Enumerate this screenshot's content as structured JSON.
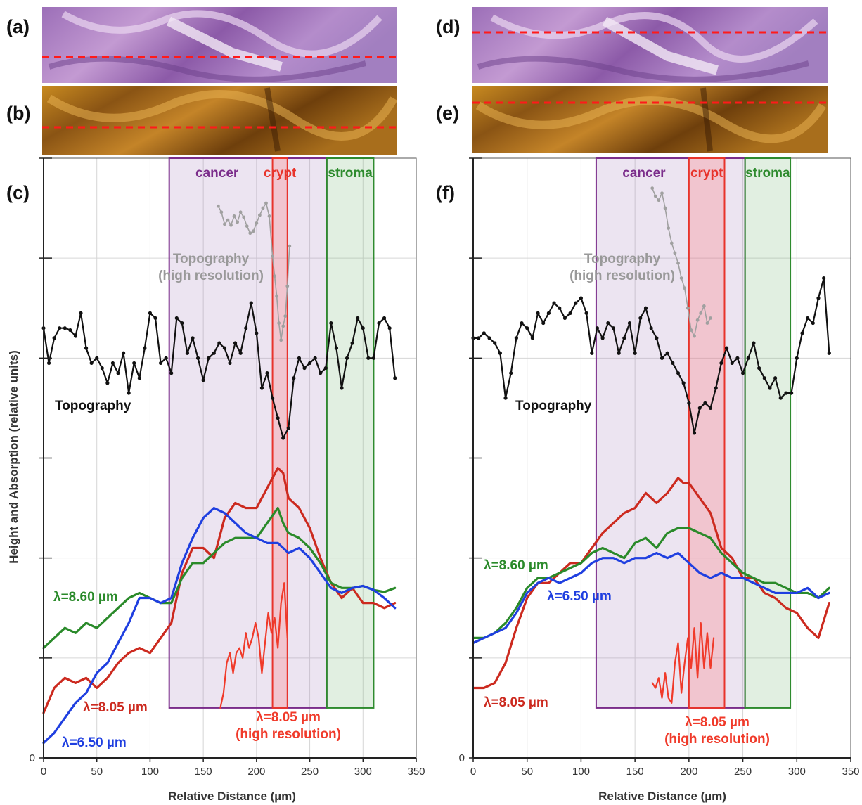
{
  "panel_labels": {
    "a": "(a)",
    "b": "(b)",
    "c": "(c)",
    "d": "(d)",
    "e": "(e)",
    "f": "(f)"
  },
  "colors": {
    "cancer": "#7b2d8b",
    "crypt": "#e8332b",
    "stroma": "#2e8b2e",
    "topography": "#111111",
    "topography_hr": "#a0a0a0",
    "lambda_805": "#cc2a1f",
    "lambda_860": "#2a8a2a",
    "lambda_650": "#1f3fe0",
    "lambda_805_hr": "#f03a2a"
  },
  "chart_data": [
    {
      "type": "line",
      "panel": "(c)",
      "xlabel": "Relative Distance (µm)",
      "ylabel": "Height and Absorption (relative units)",
      "xlim": [
        0,
        350
      ],
      "xticks": [
        0,
        50,
        100,
        150,
        200,
        250,
        300,
        350
      ],
      "ylim": [
        0,
        6
      ],
      "yticks": [
        "0",
        "",
        "",
        "",
        "",
        "",
        ""
      ],
      "grid": true,
      "regions": [
        {
          "label": "cancer",
          "x0": 118,
          "x1": 266,
          "y0": 0.5,
          "y1": 6.0
        },
        {
          "label": "crypt",
          "x0": 215,
          "x1": 229,
          "y0": 0.5,
          "y1": 6.0
        },
        {
          "label": "stroma",
          "x0": 266,
          "x1": 310,
          "y0": 0.5,
          "y1": 6.0
        }
      ],
      "annotations": {
        "topography": "Topography",
        "topography_hr": "Topography\n(high resolution)",
        "l860": "λ=8.60 µm",
        "l805": "λ=8.05 µm",
        "l650": "λ=6.50 µm",
        "l805_hr": "λ=8.05 µm\n(high resolution)"
      },
      "series": [
        {
          "key": "topography",
          "x": [
            0,
            5,
            10,
            15,
            20,
            25,
            30,
            35,
            40,
            45,
            50,
            55,
            60,
            65,
            70,
            75,
            80,
            85,
            90,
            95,
            100,
            105,
            110,
            115,
            120,
            125,
            130,
            135,
            140,
            145,
            150,
            155,
            160,
            165,
            170,
            175,
            180,
            185,
            190,
            195,
            200,
            205,
            210,
            215,
            220,
            225,
            230,
            235,
            240,
            245,
            250,
            255,
            260,
            265,
            270,
            275,
            280,
            285,
            290,
            295,
            300,
            305,
            310,
            315,
            320,
            325,
            330
          ],
          "y": [
            4.3,
            3.95,
            4.2,
            4.3,
            4.3,
            4.28,
            4.22,
            4.45,
            4.1,
            3.95,
            4.0,
            3.9,
            3.75,
            3.95,
            3.85,
            4.05,
            3.65,
            3.95,
            3.8,
            4.1,
            4.45,
            4.4,
            3.95,
            4.0,
            3.85,
            4.4,
            4.35,
            4.05,
            4.2,
            4.0,
            3.78,
            4.0,
            4.05,
            4.15,
            4.1,
            3.95,
            4.15,
            4.05,
            4.3,
            4.55,
            4.25,
            3.7,
            3.85,
            3.6,
            3.4,
            3.2,
            3.3,
            3.8,
            4.0,
            3.9,
            3.95,
            4.0,
            3.85,
            3.9,
            4.35,
            4.1,
            3.7,
            4.0,
            4.15,
            4.4,
            4.3,
            4.0,
            4.0,
            4.35,
            4.4,
            4.3,
            3.8
          ]
        },
        {
          "key": "topography_hr",
          "x": [
            164,
            167,
            170,
            173,
            176,
            179,
            182,
            185,
            188,
            191,
            194,
            197,
            200,
            203,
            206,
            209,
            212,
            215,
            217,
            219,
            221,
            223,
            225,
            227,
            229,
            231
          ],
          "y": [
            5.52,
            5.46,
            5.34,
            5.38,
            5.33,
            5.42,
            5.36,
            5.46,
            5.41,
            5.32,
            5.25,
            5.27,
            5.35,
            5.43,
            5.5,
            5.55,
            5.42,
            5.02,
            4.82,
            4.62,
            4.35,
            4.18,
            4.32,
            4.42,
            4.72,
            5.12
          ]
        },
        {
          "key": "lambda_805",
          "x": [
            0,
            10,
            20,
            30,
            40,
            50,
            60,
            70,
            80,
            90,
            100,
            110,
            120,
            130,
            140,
            150,
            160,
            170,
            180,
            190,
            200,
            210,
            220,
            225,
            230,
            240,
            250,
            260,
            270,
            280,
            290,
            300,
            310,
            320,
            330
          ],
          "y": [
            0.45,
            0.7,
            0.8,
            0.75,
            0.8,
            0.7,
            0.8,
            0.95,
            1.05,
            1.1,
            1.05,
            1.2,
            1.35,
            1.85,
            2.1,
            2.1,
            2.0,
            2.4,
            2.55,
            2.5,
            2.5,
            2.7,
            2.9,
            2.85,
            2.6,
            2.5,
            2.3,
            2.0,
            1.75,
            1.6,
            1.7,
            1.55,
            1.55,
            1.5,
            1.55
          ]
        },
        {
          "key": "lambda_860",
          "x": [
            0,
            10,
            20,
            30,
            40,
            50,
            60,
            70,
            80,
            90,
            100,
            110,
            120,
            130,
            140,
            150,
            160,
            170,
            180,
            190,
            200,
            210,
            220,
            225,
            230,
            240,
            250,
            260,
            270,
            280,
            290,
            300,
            310,
            320,
            330
          ],
          "y": [
            1.1,
            1.2,
            1.3,
            1.25,
            1.35,
            1.3,
            1.4,
            1.5,
            1.6,
            1.65,
            1.6,
            1.55,
            1.55,
            1.8,
            1.95,
            1.95,
            2.05,
            2.15,
            2.2,
            2.2,
            2.2,
            2.35,
            2.5,
            2.35,
            2.25,
            2.2,
            2.1,
            1.95,
            1.75,
            1.7,
            1.7,
            1.72,
            1.68,
            1.66,
            1.7
          ]
        },
        {
          "key": "lambda_650",
          "x": [
            0,
            10,
            20,
            30,
            40,
            50,
            60,
            70,
            80,
            90,
            100,
            110,
            120,
            130,
            140,
            150,
            160,
            170,
            180,
            190,
            200,
            210,
            220,
            230,
            240,
            250,
            260,
            270,
            280,
            290,
            300,
            310,
            320,
            330
          ],
          "y": [
            0.15,
            0.25,
            0.4,
            0.55,
            0.65,
            0.85,
            0.95,
            1.15,
            1.35,
            1.6,
            1.6,
            1.55,
            1.6,
            1.95,
            2.2,
            2.4,
            2.5,
            2.45,
            2.35,
            2.25,
            2.2,
            2.15,
            2.15,
            2.05,
            2.1,
            2.0,
            1.85,
            1.7,
            1.65,
            1.7,
            1.72,
            1.68,
            1.6,
            1.5
          ]
        },
        {
          "key": "lambda_805_hr",
          "x": [
            166,
            169,
            172,
            175,
            178,
            181,
            184,
            187,
            190,
            193,
            196,
            199,
            202,
            205,
            208,
            211,
            214,
            217,
            220,
            223,
            226,
            229
          ],
          "y": [
            0.5,
            0.65,
            0.95,
            1.05,
            0.85,
            1.05,
            1.1,
            1.0,
            1.25,
            1.1,
            1.2,
            1.35,
            1.2,
            0.85,
            1.15,
            1.45,
            1.25,
            1.4,
            1.1,
            1.55,
            1.75,
            1.2
          ]
        }
      ]
    },
    {
      "type": "line",
      "panel": "(f)",
      "xlabel": "Relative Distance (µm)",
      "ylabel": "",
      "xlim": [
        0,
        350
      ],
      "xticks": [
        0,
        50,
        100,
        150,
        200,
        250,
        300,
        350
      ],
      "ylim": [
        0,
        6
      ],
      "yticks": [
        "0",
        "",
        "",
        "",
        "",
        "",
        ""
      ],
      "grid": true,
      "regions": [
        {
          "label": "cancer",
          "x0": 114,
          "x1": 252,
          "y0": 0.5,
          "y1": 6.0
        },
        {
          "label": "crypt",
          "x0": 200,
          "x1": 233,
          "y0": 0.5,
          "y1": 6.0
        },
        {
          "label": "stroma",
          "x0": 252,
          "x1": 294,
          "y0": 0.5,
          "y1": 6.0
        }
      ],
      "annotations": {
        "topography": "Topography",
        "topography_hr": "Topography\n(high resolution)",
        "l860": "λ=8.60 µm",
        "l805": "λ=8.05 µm",
        "l650": "λ=6.50 µm",
        "l805_hr": "λ=8.05 µm\n(high resolution)"
      },
      "series": [
        {
          "key": "topography",
          "x": [
            0,
            5,
            10,
            15,
            20,
            25,
            30,
            35,
            40,
            45,
            50,
            55,
            60,
            65,
            70,
            75,
            80,
            85,
            90,
            95,
            100,
            105,
            110,
            115,
            120,
            125,
            130,
            135,
            140,
            145,
            150,
            155,
            160,
            165,
            170,
            175,
            180,
            185,
            190,
            195,
            200,
            205,
            210,
            215,
            220,
            225,
            230,
            235,
            240,
            245,
            250,
            255,
            260,
            265,
            270,
            275,
            280,
            285,
            290,
            295,
            300,
            305,
            310,
            315,
            320,
            325,
            330
          ],
          "y": [
            4.2,
            4.2,
            4.25,
            4.2,
            4.15,
            4.05,
            3.6,
            3.85,
            4.2,
            4.35,
            4.3,
            4.2,
            4.45,
            4.35,
            4.45,
            4.55,
            4.5,
            4.4,
            4.45,
            4.55,
            4.6,
            4.45,
            4.05,
            4.3,
            4.2,
            4.35,
            4.3,
            4.05,
            4.2,
            4.35,
            4.05,
            4.4,
            4.5,
            4.3,
            4.2,
            4.0,
            4.05,
            3.95,
            3.85,
            3.75,
            3.55,
            3.25,
            3.5,
            3.55,
            3.5,
            3.7,
            3.95,
            4.1,
            3.95,
            4.0,
            3.85,
            4.0,
            4.15,
            3.9,
            3.8,
            3.7,
            3.8,
            3.6,
            3.65,
            3.65,
            4.0,
            4.25,
            4.4,
            4.35,
            4.6,
            4.8,
            4.05
          ]
        },
        {
          "key": "topography_hr",
          "x": [
            166,
            169,
            172,
            175,
            178,
            181,
            184,
            187,
            190,
            193,
            196,
            199,
            202,
            205,
            208,
            211,
            214,
            217,
            220
          ],
          "y": [
            5.7,
            5.62,
            5.58,
            5.65,
            5.5,
            5.3,
            5.15,
            5.05,
            4.95,
            4.8,
            4.7,
            4.5,
            4.28,
            4.22,
            4.38,
            4.45,
            4.52,
            4.35,
            4.4
          ]
        },
        {
          "key": "lambda_805",
          "x": [
            0,
            10,
            20,
            30,
            40,
            50,
            60,
            70,
            80,
            90,
            100,
            110,
            120,
            130,
            140,
            150,
            160,
            170,
            180,
            190,
            195,
            200,
            210,
            220,
            230,
            240,
            250,
            260,
            270,
            280,
            290,
            300,
            310,
            320,
            330
          ],
          "y": [
            0.7,
            0.7,
            0.75,
            0.95,
            1.3,
            1.6,
            1.75,
            1.75,
            1.85,
            1.95,
            1.95,
            2.1,
            2.25,
            2.35,
            2.45,
            2.5,
            2.65,
            2.55,
            2.65,
            2.8,
            2.75,
            2.75,
            2.6,
            2.45,
            2.1,
            2.0,
            1.8,
            1.8,
            1.65,
            1.6,
            1.5,
            1.45,
            1.3,
            1.2,
            1.55
          ]
        },
        {
          "key": "lambda_860",
          "x": [
            0,
            10,
            20,
            30,
            40,
            50,
            60,
            70,
            80,
            90,
            100,
            110,
            120,
            130,
            140,
            150,
            160,
            170,
            180,
            190,
            200,
            210,
            220,
            230,
            240,
            250,
            260,
            270,
            280,
            290,
            300,
            310,
            320,
            330
          ],
          "y": [
            1.2,
            1.2,
            1.25,
            1.35,
            1.5,
            1.7,
            1.8,
            1.8,
            1.85,
            1.9,
            1.95,
            2.05,
            2.1,
            2.05,
            2.0,
            2.15,
            2.2,
            2.1,
            2.25,
            2.3,
            2.3,
            2.25,
            2.2,
            2.05,
            1.95,
            1.85,
            1.8,
            1.75,
            1.75,
            1.7,
            1.65,
            1.65,
            1.6,
            1.7
          ]
        },
        {
          "key": "lambda_650",
          "x": [
            0,
            10,
            20,
            30,
            40,
            50,
            60,
            70,
            80,
            90,
            100,
            110,
            120,
            130,
            140,
            150,
            160,
            170,
            180,
            190,
            200,
            210,
            220,
            230,
            240,
            250,
            260,
            270,
            280,
            290,
            300,
            310,
            320,
            330
          ],
          "y": [
            1.15,
            1.2,
            1.25,
            1.3,
            1.45,
            1.65,
            1.75,
            1.8,
            1.75,
            1.8,
            1.85,
            1.95,
            2.0,
            2.0,
            1.95,
            2.0,
            2.0,
            2.05,
            2.0,
            2.05,
            1.95,
            1.85,
            1.8,
            1.85,
            1.8,
            1.8,
            1.75,
            1.7,
            1.65,
            1.65,
            1.65,
            1.7,
            1.6,
            1.65
          ]
        },
        {
          "key": "lambda_805_hr",
          "x": [
            166,
            169,
            172,
            175,
            178,
            181,
            184,
            187,
            190,
            193,
            196,
            199,
            202,
            205,
            208,
            211,
            214,
            217,
            220,
            223
          ],
          "y": [
            0.75,
            0.7,
            0.8,
            0.6,
            0.85,
            0.6,
            0.55,
            0.95,
            1.15,
            0.65,
            0.95,
            1.2,
            0.9,
            1.3,
            0.8,
            1.35,
            0.9,
            1.25,
            0.9,
            1.2
          ]
        }
      ]
    }
  ]
}
